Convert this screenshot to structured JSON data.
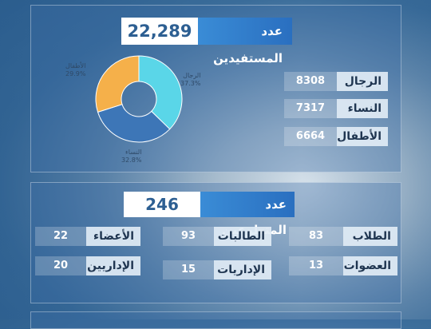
{
  "colors": {
    "accent": "#2a6fc0",
    "donut_men": "#5ad6e8",
    "donut_women": "#3d76b7",
    "donut_children": "#f5b04a"
  },
  "beneficiaries": {
    "title": "عدد المستفيدين",
    "total": "22,289",
    "stats": [
      {
        "label": "الرجال",
        "value": "8308"
      },
      {
        "label": "النساء",
        "value": "7317"
      },
      {
        "label": "الأطفال",
        "value": "6664"
      }
    ],
    "chart": {
      "men_label": "الرجال",
      "men_pct": "37.3%",
      "women_label": "النساء",
      "women_pct": "32.8%",
      "children_label": "الأطفال",
      "children_pct": "29.9%"
    }
  },
  "chart_data": {
    "type": "pie",
    "categories": [
      "الرجال",
      "النساء",
      "الأطفال"
    ],
    "values": [
      37.3,
      32.8,
      29.9
    ]
  },
  "volunteers": {
    "title": "عدد المتطوعين",
    "total": "246",
    "stats": [
      {
        "label": "الطلاب",
        "value": "83"
      },
      {
        "label": "الطالبات",
        "value": "93"
      },
      {
        "label": "الأعضاء",
        "value": "22"
      },
      {
        "label": "العضوات",
        "value": "13"
      },
      {
        "label": "الإداريات",
        "value": "15"
      },
      {
        "label": "الإداريين",
        "value": "20"
      }
    ]
  }
}
